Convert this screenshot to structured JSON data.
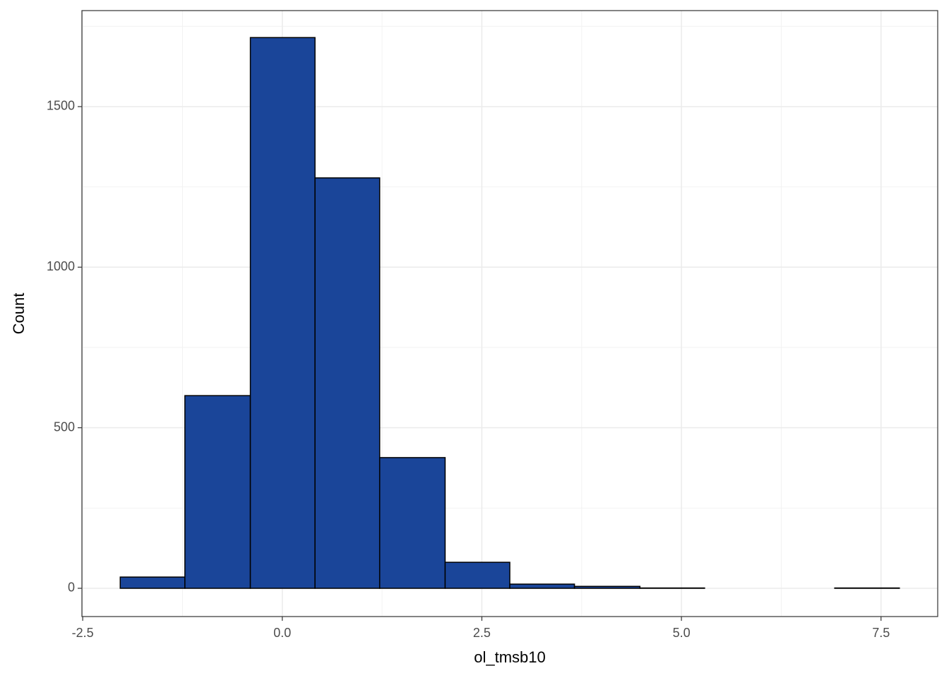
{
  "chart_data": {
    "type": "histogram",
    "x_label": "ol_tmsb10",
    "y_label": "Count",
    "bins": [
      -2.03,
      -1.22,
      -0.4,
      0.41,
      1.22,
      2.04,
      2.85,
      3.66,
      4.48,
      5.29,
      6.1,
      6.92,
      7.73
    ],
    "values": [
      35,
      600,
      1715,
      1278,
      407,
      81,
      13,
      6,
      1,
      0,
      0,
      1
    ],
    "color": "#1a4599",
    "edge_color": "#000000",
    "xlim": [
      -2.51,
      8.21
    ],
    "ylim": [
      -88,
      1799
    ],
    "xticks": [
      -2.5,
      {
        "value": 0,
        "label": "0.0"
      },
      2.5,
      {
        "value": 5,
        "label": "5.0"
      },
      7.5
    ],
    "yticks": [
      0,
      500,
      1000,
      1500
    ],
    "x_minor_ticks": [
      -1.25,
      1.25,
      3.75,
      6.25
    ],
    "y_minor_ticks": [
      250,
      750,
      1250,
      1750
    ],
    "grid": true
  }
}
